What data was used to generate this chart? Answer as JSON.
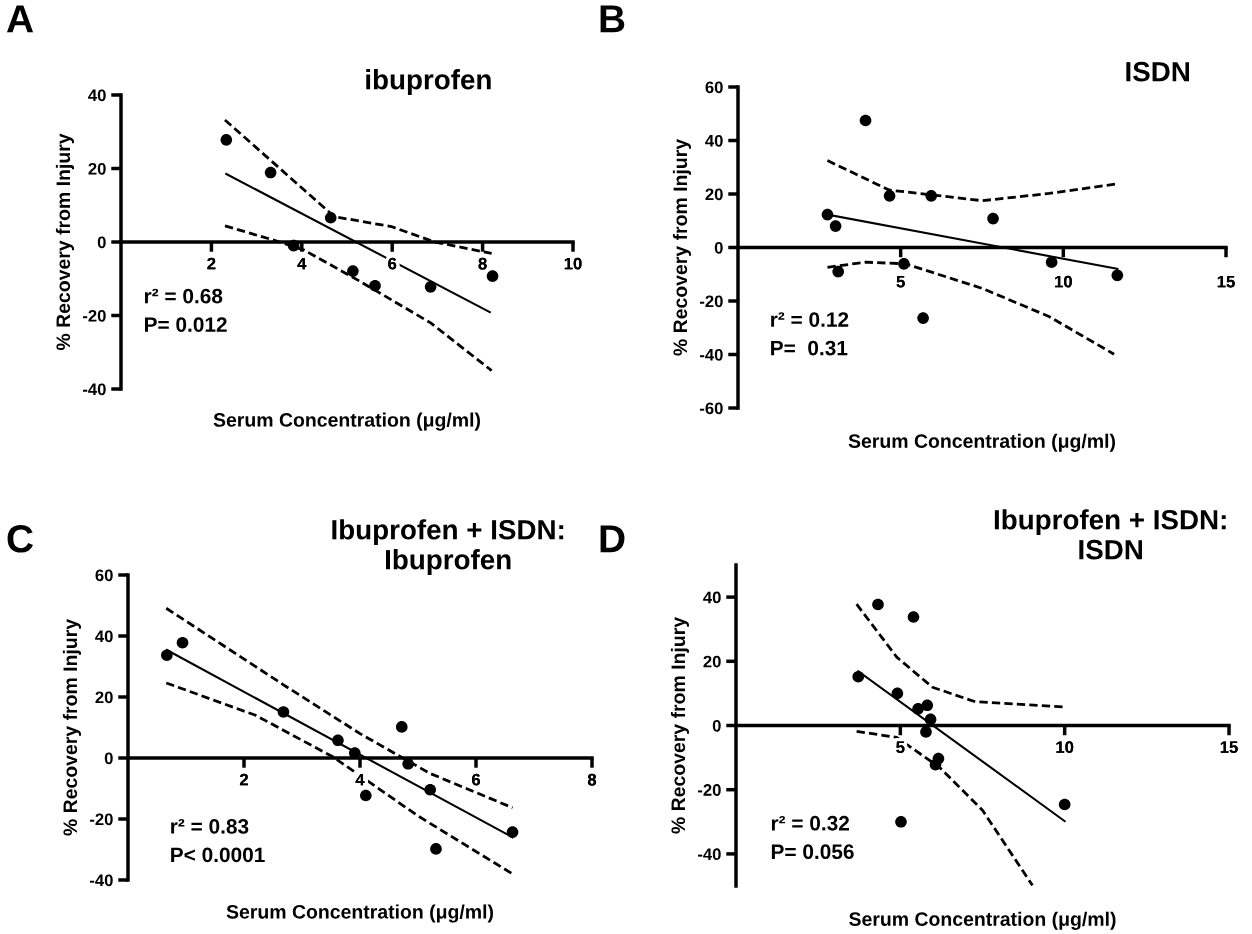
{
  "chart_data": [
    {
      "type": "scatter",
      "title": "ibuprofen",
      "xlabel": "Serum Concentration (μg/ml)",
      "ylabel": "% Recovery from Injury",
      "xlim": [
        0,
        10
      ],
      "xticks": [
        2,
        4,
        6,
        8,
        10
      ],
      "ylim": [
        -40,
        40
      ],
      "yticks": [
        -40,
        -20,
        0,
        20,
        40
      ],
      "grid": false,
      "legend": false,
      "annotations": [
        "A",
        "r² = 0.68",
        "P= 0.012"
      ],
      "series": [
        {
          "color": "#000000",
          "marker": "circle",
          "x": [
            2.33,
            3.31,
            3.82,
            4.64,
            5.13,
            5.62,
            6.85,
            8.22
          ],
          "values": [
            27.8,
            18.9,
            -1,
            6.6,
            -7.9,
            -11.9,
            -12.2,
            -9.3
          ]
        },
        {
          "type": "line",
          "color": "#000000",
          "marker": "none",
          "line_style": "solid",
          "x": [
            2.33,
            8.16
          ],
          "values": [
            18.5,
            -19.1
          ]
        },
        {
          "type": "line",
          "color": "#000000",
          "marker": "none",
          "line_style": "dashed",
          "x": [
            2.3,
            4.72,
            5.98,
            6.94,
            8.2
          ],
          "values": [
            33.2,
            6.9,
            4.2,
            0,
            -3.1
          ]
        },
        {
          "type": "line",
          "color": "#000000",
          "marker": "none",
          "line_style": "dashed",
          "x": [
            2.3,
            3.38,
            4.05,
            5.23,
            6.85,
            8.2
          ],
          "values": [
            4.4,
            0.5,
            -2.2,
            -10.3,
            -22,
            -35
          ]
        }
      ]
    },
    {
      "type": "scatter",
      "title": "ISDN",
      "xlabel": "Serum Concentration (μg/ml)",
      "ylabel": "% Recovery from Injury",
      "xlim": [
        0,
        15
      ],
      "xticks": [
        5,
        10,
        15
      ],
      "ylim": [
        -60,
        60
      ],
      "yticks": [
        -60,
        -40,
        -20,
        0,
        20,
        40,
        60
      ],
      "grid": false,
      "legend": false,
      "annotations": [
        "B",
        "r² = 0.12",
        "P=  0.31"
      ],
      "series": [
        {
          "color": "#000000",
          "marker": "circle",
          "x": [
            2.75,
            3.0,
            3.92,
            3.08,
            4.66,
            5.1,
            5.69,
            5.94,
            7.84,
            9.64,
            11.66
          ],
          "values": [
            12.3,
            8.0,
            47.5,
            -9.0,
            19.3,
            -6.1,
            -26.4,
            19.3,
            10.8,
            -5.5,
            -10.4
          ]
        },
        {
          "type": "line",
          "color": "#000000",
          "marker": "none",
          "line_style": "solid",
          "x": [
            2.75,
            11.66
          ],
          "values": [
            12.3,
            -8.0
          ]
        },
        {
          "type": "line",
          "color": "#000000",
          "marker": "none",
          "line_style": "dashed",
          "x": [
            2.75,
            4.64,
            7.51,
            9.56,
            11.61
          ],
          "values": [
            32.5,
            21.5,
            17.5,
            20.2,
            23.7
          ]
        },
        {
          "type": "line",
          "color": "#000000",
          "marker": "none",
          "line_style": "dashed",
          "x": [
            2.75,
            3.92,
            5.15,
            7.51,
            9.56,
            11.56
          ],
          "values": [
            -7.4,
            -5.5,
            -6.1,
            -15.3,
            -25.8,
            -39.9
          ]
        }
      ]
    },
    {
      "type": "scatter",
      "title": "Ibuprofen + ISDN:\nIbuprofen",
      "xlabel": "Serum Concentration (μg/ml)",
      "ylabel": "% Recovery from Injury",
      "xlim": [
        0,
        8
      ],
      "xticks": [
        2,
        4,
        6,
        8
      ],
      "ylim": [
        -40,
        60
      ],
      "yticks": [
        -40,
        -20,
        0,
        20,
        40,
        60
      ],
      "grid": false,
      "legend": false,
      "annotations": [
        "C",
        "r² = 0.83",
        "P< 0.0001"
      ],
      "series": [
        {
          "color": "#000000",
          "marker": "circle",
          "x": [
            0.67,
            0.94,
            2.68,
            3.62,
            3.91,
            4.72,
            4.83,
            4.1,
            5.21,
            5.31,
            6.63
          ],
          "values": [
            33.7,
            37.8,
            15.1,
            5.8,
            1.6,
            10.2,
            -1.9,
            -12.3,
            -10.4,
            -29.8,
            -24.3
          ]
        },
        {
          "type": "line",
          "color": "#000000",
          "marker": "none",
          "line_style": "solid",
          "x": [
            0.67,
            6.63
          ],
          "values": [
            35.4,
            -26.0
          ]
        },
        {
          "type": "line",
          "color": "#000000",
          "marker": "none",
          "line_style": "dashed",
          "x": [
            0.66,
            2.68,
            4,
            5.2,
            6.63
          ],
          "values": [
            49.1,
            24,
            8,
            -5,
            -16.3
          ]
        },
        {
          "type": "line",
          "color": "#000000",
          "marker": "none",
          "line_style": "dashed",
          "x": [
            0.66,
            2.2,
            3.54,
            5,
            6.63
          ],
          "values": [
            24.6,
            14,
            0.3,
            -19,
            -38
          ]
        }
      ]
    },
    {
      "type": "scatter",
      "title": "Ibuprofen + ISDN:\nISDN",
      "xlabel": "Serum Concentration (μg/ml)",
      "ylabel": "% Recovery from Injury",
      "xlim": [
        0,
        15
      ],
      "xticks": [
        5,
        10,
        15
      ],
      "ylim": [
        -50,
        50
      ],
      "yticks": [
        -40,
        -20,
        0,
        20,
        40
      ],
      "grid": false,
      "legend": false,
      "annotations": [
        "D",
        "r² = 0.32",
        "P= 0.056"
      ],
      "series": [
        {
          "color": "#000000",
          "marker": "circle",
          "x": [
            3.72,
            4.32,
            5.4,
            4.91,
            5.54,
            5.82,
            5.92,
            5.78,
            6.16,
            6.07,
            5.02,
            10.0
          ],
          "values": [
            15.2,
            37.7,
            33.8,
            10.0,
            5.2,
            6.3,
            1.9,
            -2.0,
            -10.3,
            -12.2,
            -30.0,
            -24.6
          ]
        },
        {
          "type": "line",
          "color": "#000000",
          "marker": "none",
          "line_style": "solid",
          "x": [
            3.72,
            10.0
          ],
          "values": [
            16.9,
            -29.8
          ]
        },
        {
          "type": "line",
          "color": "#000000",
          "marker": "none",
          "line_style": "dashed",
          "x": [
            3.67,
            4.89,
            5.98,
            7.28,
            9.95
          ],
          "values": [
            37.8,
            21.3,
            11.9,
            7.4,
            5.8
          ]
        },
        {
          "type": "line",
          "color": "#000000",
          "marker": "none",
          "line_style": "dashed",
          "x": [
            3.67,
            4.89,
            6.2,
            7.5,
            9.02
          ],
          "values": [
            -1.8,
            -3.7,
            -13.1,
            -26.4,
            -49.8
          ]
        }
      ]
    }
  ]
}
